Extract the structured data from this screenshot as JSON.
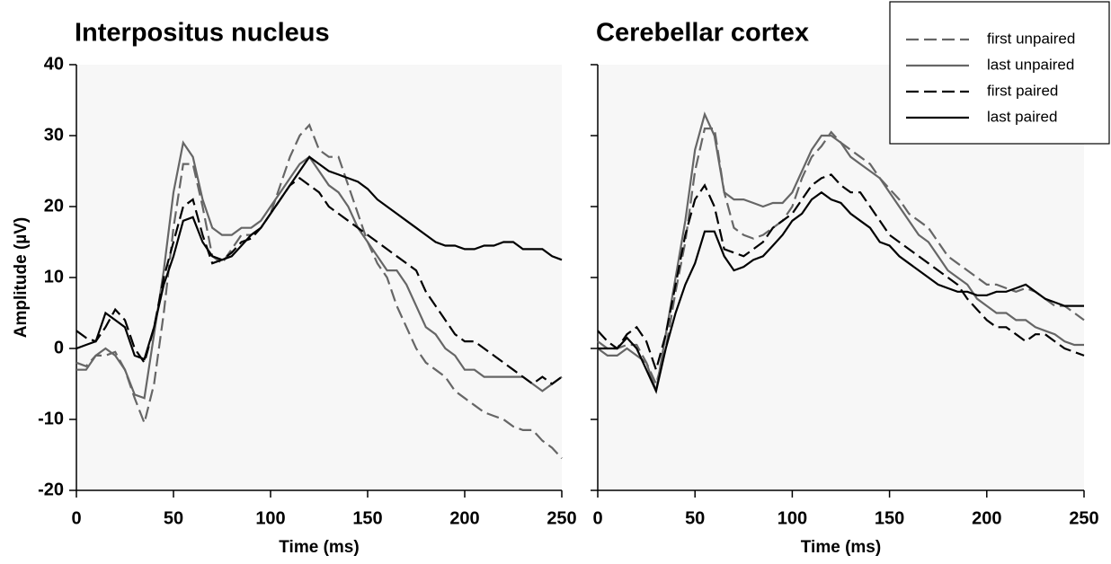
{
  "chart_data": [
    {
      "type": "line",
      "title": "Interpositus nucleus",
      "x_label": "Time (ms)",
      "y_label": "Amplitude (µV)",
      "xlim": [
        0,
        250
      ],
      "xticks": [
        0,
        50,
        100,
        150,
        200,
        250
      ],
      "ylim": [
        -20,
        40
      ],
      "yticks": [
        -20,
        -10,
        0,
        10,
        20,
        30,
        40
      ],
      "ytick_labels": true,
      "x": [
        0,
        5,
        10,
        15,
        20,
        25,
        30,
        35,
        40,
        45,
        50,
        55,
        60,
        65,
        70,
        75,
        80,
        85,
        90,
        95,
        100,
        105,
        110,
        115,
        120,
        125,
        130,
        135,
        140,
        145,
        150,
        155,
        160,
        165,
        170,
        175,
        180,
        185,
        190,
        195,
        200,
        205,
        210,
        215,
        220,
        225,
        230,
        235,
        240,
        245,
        250
      ],
      "series": [
        {
          "color": "#666666",
          "dash": true,
          "values": [
            -2,
            -2.5,
            -1,
            -1,
            -0.5,
            -3,
            -7,
            -10.5,
            -5,
            5,
            17,
            26,
            26,
            20,
            13,
            12,
            14,
            16,
            16,
            17,
            19,
            23,
            27,
            30,
            31.5,
            28,
            27,
            27,
            23,
            19,
            15,
            12,
            10,
            6,
            3,
            0,
            -2,
            -3,
            -4,
            -6,
            -7,
            -8,
            -9,
            -9.5,
            -10,
            -11,
            -11.5,
            -11.5,
            -13,
            -14,
            -15.5
          ]
        },
        {
          "color": "#666666",
          "dash": false,
          "values": [
            -3,
            -3,
            -1,
            0,
            -1,
            -3,
            -6.5,
            -7,
            2,
            11,
            22,
            29,
            27,
            21,
            17,
            16,
            16,
            17,
            17,
            18,
            20,
            22,
            24,
            26,
            27,
            25,
            23,
            22,
            20,
            17,
            15,
            13,
            11,
            11,
            9,
            6,
            3,
            2,
            0,
            -1,
            -3,
            -3,
            -4,
            -4,
            -4,
            -4,
            -4,
            -5,
            -6,
            -5,
            -4
          ]
        },
        {
          "color": "#000000",
          "dash": true,
          "values": [
            2.5,
            1.5,
            1,
            3,
            5.5,
            4,
            0,
            -2,
            3,
            10,
            15,
            20,
            21,
            16,
            12,
            12.5,
            13.5,
            15,
            15.5,
            17,
            19,
            21,
            23,
            24,
            23,
            22,
            20,
            19,
            18,
            17,
            16,
            15,
            14,
            13,
            12,
            11,
            8,
            6,
            4,
            2,
            1,
            1,
            0,
            -1,
            -2,
            -3,
            -4,
            -5,
            -4,
            -5,
            -4
          ]
        },
        {
          "color": "#000000",
          "dash": false,
          "values": [
            0,
            0.5,
            1,
            5,
            4,
            3,
            -1,
            -1.5,
            3,
            9,
            13,
            18,
            18.5,
            15,
            13,
            12.5,
            13,
            14.5,
            16,
            17,
            19,
            21,
            23,
            25,
            27,
            26,
            25,
            24.5,
            24,
            23.5,
            22.5,
            21,
            20,
            19,
            18,
            17,
            16,
            15,
            14.5,
            14.5,
            14,
            14,
            14.5,
            14.5,
            15,
            15,
            14,
            14,
            14,
            13,
            12.5
          ]
        }
      ]
    },
    {
      "type": "line",
      "title": "Cerebellar cortex",
      "x_label": "Time (ms)",
      "legend": "upper right",
      "xlim": [
        0,
        250
      ],
      "xticks": [
        0,
        50,
        100,
        150,
        200,
        250
      ],
      "ylim": [
        -20,
        40
      ],
      "yticks": [
        -20,
        -10,
        0,
        10,
        20,
        30,
        40
      ],
      "ytick_labels": false,
      "x": [
        0,
        5,
        10,
        15,
        20,
        25,
        30,
        35,
        40,
        45,
        50,
        55,
        60,
        65,
        70,
        75,
        80,
        85,
        90,
        95,
        100,
        105,
        110,
        115,
        120,
        125,
        130,
        135,
        140,
        145,
        150,
        155,
        160,
        165,
        170,
        175,
        180,
        185,
        190,
        195,
        200,
        205,
        210,
        215,
        220,
        225,
        230,
        235,
        240,
        245,
        250
      ],
      "series": [
        {
          "name": "first unpaired",
          "color": "#666666",
          "dash": true,
          "values": [
            1,
            0,
            0,
            0.5,
            0.5,
            -2,
            -5,
            0,
            8,
            15,
            25,
            31,
            31,
            22,
            17,
            16,
            15.5,
            16,
            17,
            18,
            20,
            24,
            27,
            28.5,
            30.5,
            29,
            28,
            27,
            26,
            24,
            22.5,
            21,
            19,
            18,
            17,
            15,
            13,
            12,
            11,
            10,
            9,
            9,
            8.5,
            8,
            8.5,
            8,
            7,
            6,
            6,
            5,
            4
          ]
        },
        {
          "name": "last unpaired",
          "color": "#666666",
          "dash": false,
          "values": [
            0,
            -1,
            -1,
            0,
            -1,
            -2,
            -6,
            2,
            10,
            18,
            28,
            33,
            30,
            22,
            21,
            21,
            20.5,
            20,
            20.5,
            20.5,
            22,
            25,
            28,
            30,
            30,
            29,
            27,
            26,
            25,
            24,
            22,
            20,
            18,
            16,
            15,
            13,
            11,
            10,
            9,
            7,
            6,
            5,
            5,
            4,
            4,
            3,
            2.5,
            2,
            1,
            0.5,
            0.5
          ]
        },
        {
          "name": "first paired",
          "color": "#000000",
          "dash": true,
          "values": [
            2.5,
            1,
            0,
            2,
            3,
            1,
            -3,
            2,
            9,
            16,
            21,
            23,
            20,
            14,
            13.5,
            13,
            14,
            15,
            17,
            18,
            19,
            21,
            23,
            24,
            24.5,
            23,
            22,
            22,
            20,
            18,
            16,
            15,
            14,
            13,
            12,
            11,
            10,
            9,
            7,
            5.5,
            4,
            3,
            3,
            2,
            1,
            2,
            2,
            1,
            0,
            -0.5,
            -1
          ]
        },
        {
          "name": "last paired",
          "color": "#000000",
          "dash": false,
          "values": [
            0,
            0,
            0,
            1.5,
            0,
            -3,
            -6,
            0,
            5,
            9,
            12,
            16.5,
            16.5,
            13,
            11,
            11.5,
            12.5,
            13,
            14.5,
            16,
            18,
            19,
            21,
            22,
            21,
            20.5,
            19,
            18,
            17,
            15,
            14.5,
            13,
            12,
            11,
            10,
            9,
            8.5,
            8,
            8,
            7.5,
            7.5,
            8,
            8,
            8.5,
            9,
            8,
            7,
            6.5,
            6,
            6,
            6
          ]
        }
      ]
    }
  ]
}
